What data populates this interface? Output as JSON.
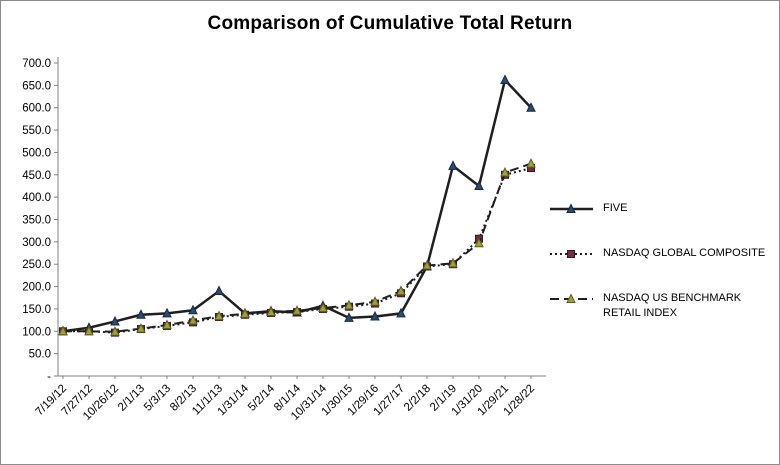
{
  "window": {
    "background": "#ffffff",
    "border_color": "#8c8c8c"
  },
  "chart_data": {
    "type": "line",
    "title": "Comparison of Cumulative Total Return",
    "xlabel": "",
    "ylabel": "",
    "ylim": [
      0,
      700
    ],
    "grid": false,
    "legend_position": "right",
    "axis_color": "#808080",
    "text_color": "#000000",
    "categories": [
      "7/19/12",
      "7/27/12",
      "10/26/12",
      "2/1/13",
      "5/3/13",
      "8/2/13",
      "11/1/13",
      "1/31/14",
      "5/2/14",
      "8/1/14",
      "10/31/14",
      "1/30/15",
      "1/29/16",
      "1/27/17",
      "2/2/18",
      "2/1/19",
      "1/31/20",
      "1/29/21",
      "1/28/22"
    ],
    "y_ticks": {
      "values": [
        0,
        50,
        100,
        150,
        200,
        250,
        300,
        350,
        400,
        450,
        500,
        550,
        600,
        650,
        700
      ],
      "labels": [
        "-",
        "50.0",
        "100.0",
        "150.0",
        "200.0",
        "250.0",
        "300.0",
        "350.0",
        "400.0",
        "450.0",
        "500.0",
        "550.0",
        "600.0",
        "650.0",
        "700.0"
      ]
    },
    "series": [
      {
        "name": "FIVE",
        "line_style": "solid",
        "marker": "triangle",
        "line_color": "#1f1f1f",
        "marker_fill": "#2e4a6e",
        "marker_stroke": "#17293f",
        "values": [
          100,
          108,
          122,
          137,
          140,
          147,
          190,
          140,
          145,
          142,
          157,
          130,
          133,
          140,
          245,
          470,
          425,
          662,
          600
        ]
      },
      {
        "name": "NASDAQ GLOBAL COMPOSITE",
        "line_style": "dotted",
        "marker": "square",
        "line_color": "#1f1f1f",
        "marker_fill": "#722f3b",
        "marker_stroke": "#3f1a22",
        "values": [
          100,
          100,
          97,
          105,
          112,
          120,
          132,
          137,
          141,
          143,
          150,
          155,
          162,
          185,
          245,
          250,
          307,
          450,
          465
        ]
      },
      {
        "name": "NASDAQ US BENCHMARK RETAIL INDEX",
        "line_style": "dashed",
        "marker": "triangle",
        "line_color": "#1f1f1f",
        "marker_fill": "#9aa23a",
        "marker_stroke": "#5a5e22",
        "values": [
          100,
          100,
          99,
          106,
          114,
          124,
          134,
          139,
          143,
          146,
          152,
          158,
          166,
          190,
          247,
          252,
          297,
          455,
          475
        ]
      }
    ]
  }
}
